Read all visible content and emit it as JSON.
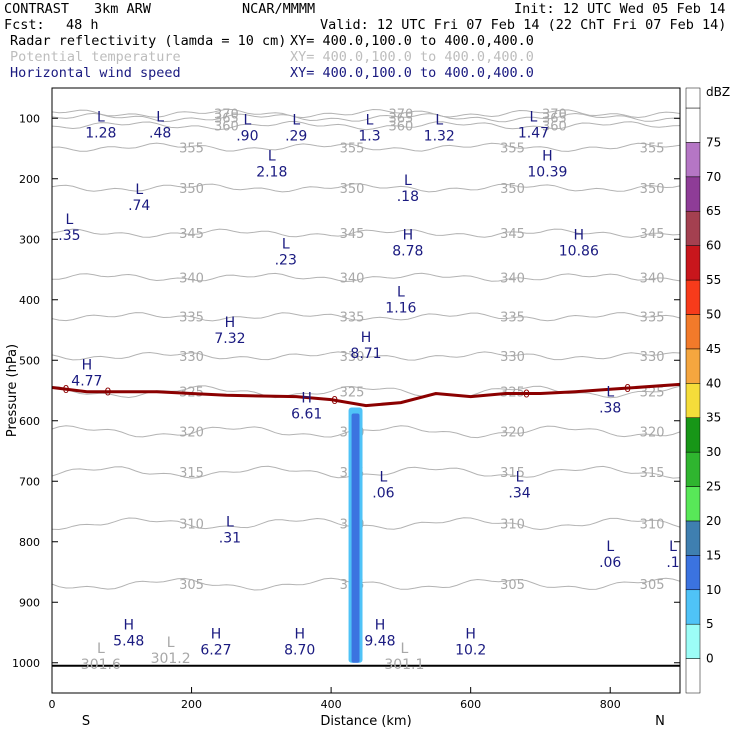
{
  "header": {
    "experiment": "CONTRAST",
    "model": "3km ARW",
    "org": "NCAR/MMMM",
    "init": "Init: 12 UTC Wed 05 Feb 14",
    "fcst_label": "Fcst:",
    "fcst_value": "48 h",
    "valid": "Valid: 12 UTC Fri 07 Feb 14 (22 ChT Fri 07 Feb 14)",
    "fields": [
      {
        "name": "Radar reflectivity (lamda = 10 cm)",
        "xy": "XY= 400.0,100.0 to 400.0,400.0",
        "color": "#000000"
      },
      {
        "name": "Potential temperature",
        "xy": "XY= 400.0,100.0 to 400.0,400.0",
        "color": "#bdbdbd"
      },
      {
        "name": "Horizontal wind speed",
        "xy": "XY= 400.0,100.0 to 400.0,400.0",
        "color": "#1a1a80"
      }
    ]
  },
  "chart_data": {
    "type": "cross-section",
    "xlabel": "Distance (km)",
    "ylabel": "Pressure (hPa)",
    "xlim": [
      0,
      900
    ],
    "ylim": [
      1050,
      50
    ],
    "x_ticks": [
      0,
      200,
      400,
      600,
      800
    ],
    "y_ticks": [
      100,
      200,
      300,
      400,
      500,
      600,
      700,
      800,
      900,
      1000
    ],
    "end_labels": [
      "S",
      "N"
    ],
    "colorbar": {
      "unit": "dBZ",
      "levels": [
        0,
        5,
        10,
        15,
        20,
        25,
        30,
        35,
        40,
        45,
        50,
        55,
        60,
        65,
        70,
        75
      ],
      "colors": [
        "#ffffff",
        "#9cfdf7",
        "#4fc3f7",
        "#3b73e0",
        "#3f7fb0",
        "#58e858",
        "#2fb52f",
        "#179617",
        "#f5dd3a",
        "#f5a63f",
        "#f27a2a",
        "#f73b1b",
        "#c8161c",
        "#a44050",
        "#8e3c97",
        "#b576c5",
        "#ffffff"
      ]
    },
    "theta_contours": [
      {
        "value": 305,
        "p": 870
      },
      {
        "value": 310,
        "p": 770
      },
      {
        "value": 315,
        "p": 685
      },
      {
        "value": 320,
        "p": 618
      },
      {
        "value": 325,
        "p": 552
      },
      {
        "value": 330,
        "p": 493
      },
      {
        "value": 335,
        "p": 428
      },
      {
        "value": 340,
        "p": 363
      },
      {
        "value": 345,
        "p": 290
      },
      {
        "value": 350,
        "p": 215
      },
      {
        "value": 355,
        "p": 148
      },
      {
        "value": 360,
        "p": 112
      },
      {
        "value": 365,
        "p": 99
      },
      {
        "value": 370,
        "p": 92
      }
    ],
    "freezing_line": {
      "label": "0",
      "points": [
        [
          0,
          545
        ],
        [
          50,
          552
        ],
        [
          150,
          552
        ],
        [
          250,
          558
        ],
        [
          350,
          560
        ],
        [
          400,
          565
        ],
        [
          450,
          575
        ],
        [
          500,
          570
        ],
        [
          550,
          555
        ],
        [
          600,
          560
        ],
        [
          650,
          555
        ],
        [
          700,
          555
        ],
        [
          750,
          552
        ],
        [
          800,
          548
        ],
        [
          900,
          540
        ]
      ]
    },
    "reflectivity_column": {
      "x_range": [
        425,
        445
      ],
      "p_top": 578,
      "p_bottom": 1000
    },
    "wind_extrema": [
      {
        "t": "L",
        "v": "1.28",
        "x": 70,
        "p": 105
      },
      {
        "t": "L",
        "v": ".48",
        "x": 155,
        "p": 105
      },
      {
        "t": "L",
        "v": ".90",
        "x": 280,
        "p": 110
      },
      {
        "t": "L",
        "v": ".29",
        "x": 350,
        "p": 110
      },
      {
        "t": "L",
        "v": "1.3",
        "x": 455,
        "p": 110
      },
      {
        "t": "L",
        "v": "1.32",
        "x": 555,
        "p": 110
      },
      {
        "t": "L",
        "v": "1.47",
        "x": 690,
        "p": 105
      },
      {
        "t": "L",
        "v": "2.18",
        "x": 315,
        "p": 170
      },
      {
        "t": "H",
        "v": "10.39",
        "x": 710,
        "p": 170
      },
      {
        "t": "L",
        "v": ".74",
        "x": 125,
        "p": 225
      },
      {
        "t": "L",
        "v": ".18",
        "x": 510,
        "p": 210
      },
      {
        "t": "L",
        "v": ".35",
        "x": 25,
        "p": 275
      },
      {
        "t": "H",
        "v": "8.78",
        "x": 510,
        "p": 300
      },
      {
        "t": "H",
        "v": "10.86",
        "x": 755,
        "p": 300
      },
      {
        "t": "L",
        "v": ".23",
        "x": 335,
        "p": 315
      },
      {
        "t": "L",
        "v": "1.16",
        "x": 500,
        "p": 395
      },
      {
        "t": "H",
        "v": "7.32",
        "x": 255,
        "p": 445
      },
      {
        "t": "H",
        "v": "8.71",
        "x": 450,
        "p": 470
      },
      {
        "t": "H",
        "v": "4.77",
        "x": 50,
        "p": 515
      },
      {
        "t": "H",
        "v": "6.61",
        "x": 365,
        "p": 570
      },
      {
        "t": "L",
        "v": ".38",
        "x": 800,
        "p": 560
      },
      {
        "t": "L",
        "v": ".06",
        "x": 475,
        "p": 700
      },
      {
        "t": "L",
        "v": ".34",
        "x": 670,
        "p": 700
      },
      {
        "t": "L",
        "v": ".31",
        "x": 255,
        "p": 775
      },
      {
        "t": "L",
        "v": ".06",
        "x": 800,
        "p": 815
      },
      {
        "t": "L",
        "v": ".1",
        "x": 890,
        "p": 815
      },
      {
        "t": "H",
        "v": "5.48",
        "x": 110,
        "p": 945
      },
      {
        "t": "H",
        "v": "6.27",
        "x": 235,
        "p": 960
      },
      {
        "t": "H",
        "v": "8.70",
        "x": 355,
        "p": 960
      },
      {
        "t": "H",
        "v": "9.48",
        "x": 470,
        "p": 945
      },
      {
        "t": "H",
        "v": "10.2",
        "x": 600,
        "p": 960
      }
    ],
    "theta_extrema": [
      {
        "t": "L",
        "v": "301.6",
        "x": 70,
        "p": 1010
      },
      {
        "t": "L",
        "v": "301.2",
        "x": 170,
        "p": 1000
      },
      {
        "t": "L",
        "v": "301.1",
        "x": 505,
        "p": 1010
      }
    ]
  }
}
